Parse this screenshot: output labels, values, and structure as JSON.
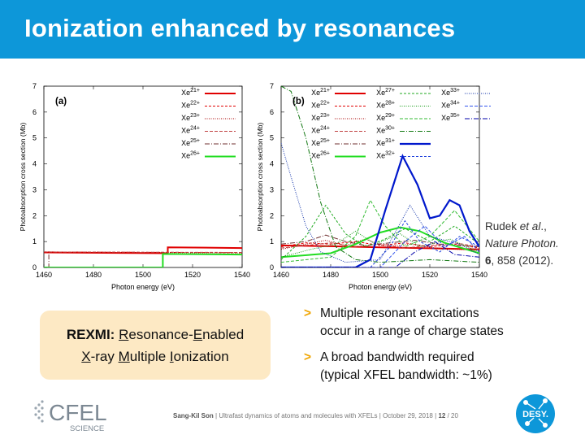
{
  "header": {
    "title": "Ionization enhanced by resonances"
  },
  "citation": {
    "authors": "Rudek",
    "etal": "et al",
    "rest": ".,",
    "journal": "Nature Photon.",
    "volume": "6",
    "pages": ", 858 (2012)."
  },
  "rexmi": {
    "acronym": "REXMI:",
    "w1_first": "R",
    "w1_rest": "esonance-",
    "w2_first": "E",
    "w2_rest": "nabled",
    "w3_first": "X",
    "w3_rest": "-ray ",
    "w4_first": "M",
    "w4_rest": "ultiple ",
    "w5_first": "I",
    "w5_rest": "onization"
  },
  "bullets": [
    {
      "marker": ">",
      "line1": "Multiple resonant excitations",
      "line2": "occur in a range of charge states"
    },
    {
      "marker": ">",
      "line1": "A broad bandwidth required",
      "line2": "(typical XFEL bandwidth: ~1%)"
    }
  ],
  "footer": {
    "author": "Sang-Kil Son",
    "talk": "Ultrafast dynamics of atoms and molecules with XFELs",
    "date": "October 29, 2018",
    "page": "12",
    "total": "/ 20",
    "logo_text": "CFEL",
    "logo_sub": "SCIENCE",
    "desy_text": "DESY."
  },
  "colors": {
    "header": "#0d97d9",
    "accent": "#f0a500",
    "box": "#fde9c4"
  },
  "chart_data": [
    {
      "type": "line",
      "panel_label": "(a)",
      "xlabel": "Photon energy (eV)",
      "ylabel": "Photoabsorption cross section (Mb)",
      "xlim": [
        1460,
        1540
      ],
      "ylim": [
        0,
        7
      ],
      "xticks": [
        1460,
        1480,
        1500,
        1520,
        1540
      ],
      "yticks": [
        0,
        1,
        2,
        3,
        4,
        5,
        6,
        7
      ],
      "legend": "top-right",
      "series": [
        {
          "name": "Xe21+",
          "color": "#e00000",
          "dash": "",
          "width": 2,
          "points": [
            [
              1460,
              0.58
            ],
            [
              1510,
              0.55
            ],
            [
              1510,
              0.78
            ],
            [
              1540,
              0.75
            ]
          ]
        },
        {
          "name": "Xe22+",
          "color": "#e00000",
          "dash": "3,2",
          "width": 1,
          "points": [
            [
              1460,
              0.6
            ],
            [
              1540,
              0.57
            ]
          ]
        },
        {
          "name": "Xe23+",
          "color": "#aa0000",
          "dash": "1,1.5",
          "width": 1,
          "points": [
            [
              1460,
              0.59
            ],
            [
              1540,
              0.56
            ]
          ]
        },
        {
          "name": "Xe24+",
          "color": "#c04040",
          "dash": "4,2",
          "width": 1,
          "points": [
            [
              1460,
              0.6
            ],
            [
              1540,
              0.58
            ]
          ]
        },
        {
          "name": "Xe25+",
          "color": "#703030",
          "dash": "6,2,1,2",
          "width": 1,
          "points": [
            [
              1462,
              0.5
            ],
            [
              1462,
              0.0
            ]
          ]
        },
        {
          "name": "Xe26+",
          "color": "#22dd22",
          "dash": "",
          "width": 2,
          "points": [
            [
              1460,
              0.0
            ],
            [
              1508,
              0.0
            ],
            [
              1508,
              0.52
            ],
            [
              1540,
              0.5
            ]
          ]
        }
      ]
    },
    {
      "type": "line",
      "panel_label": "(b)",
      "xlabel": "Photon energy (eV)",
      "ylabel": "Photoabsorption cross section (Mb)",
      "xlim": [
        1460,
        1540
      ],
      "ylim": [
        0,
        7
      ],
      "xticks": [
        1460,
        1480,
        1500,
        1520,
        1540
      ],
      "yticks": [
        0,
        1,
        2,
        3,
        4,
        5,
        6,
        7
      ],
      "legend": "top-right",
      "series": [
        {
          "name": "Xe21+",
          "color": "#e00000",
          "dash": "",
          "width": 2,
          "points": [
            [
              1460,
              0.85
            ],
            [
              1480,
              0.82
            ],
            [
              1500,
              0.78
            ],
            [
              1520,
              0.74
            ],
            [
              1540,
              0.7
            ]
          ]
        },
        {
          "name": "Xe22+",
          "color": "#e00000",
          "dash": "3,2",
          "width": 1,
          "points": [
            [
              1460,
              0.8
            ],
            [
              1470,
              0.95
            ],
            [
              1480,
              0.9
            ],
            [
              1490,
              1.0
            ],
            [
              1500,
              0.85
            ],
            [
              1510,
              0.95
            ],
            [
              1520,
              0.8
            ],
            [
              1530,
              0.9
            ],
            [
              1540,
              0.75
            ]
          ]
        },
        {
          "name": "Xe23+",
          "color": "#aa0000",
          "dash": "1,1.5",
          "width": 1,
          "points": [
            [
              1460,
              0.7
            ],
            [
              1470,
              0.9
            ],
            [
              1478,
              1.05
            ],
            [
              1486,
              0.85
            ],
            [
              1494,
              1.1
            ],
            [
              1502,
              0.8
            ],
            [
              1512,
              0.9
            ],
            [
              1522,
              0.75
            ],
            [
              1540,
              0.65
            ]
          ]
        },
        {
          "name": "Xe24+",
          "color": "#c04040",
          "dash": "4,2",
          "width": 1,
          "points": [
            [
              1460,
              0.75
            ],
            [
              1470,
              0.85
            ],
            [
              1480,
              0.95
            ],
            [
              1490,
              0.8
            ],
            [
              1500,
              0.9
            ],
            [
              1510,
              0.75
            ],
            [
              1520,
              0.85
            ],
            [
              1530,
              0.95
            ],
            [
              1540,
              0.8
            ]
          ]
        },
        {
          "name": "Xe25+",
          "color": "#703030",
          "dash": "6,2,1,2",
          "width": 1,
          "points": [
            [
              1460,
              0.9
            ],
            [
              1470,
              1.0
            ],
            [
              1478,
              1.25
            ],
            [
              1486,
              1.0
            ],
            [
              1494,
              0.85
            ],
            [
              1504,
              0.95
            ],
            [
              1514,
              1.05
            ],
            [
              1524,
              0.9
            ],
            [
              1540,
              0.8
            ]
          ]
        },
        {
          "name": "Xe26+",
          "color": "#22dd22",
          "dash": "",
          "width": 2,
          "points": [
            [
              1460,
              0.4
            ],
            [
              1480,
              0.55
            ],
            [
              1490,
              0.9
            ],
            [
              1500,
              1.35
            ],
            [
              1508,
              1.55
            ],
            [
              1516,
              1.4
            ],
            [
              1526,
              0.95
            ],
            [
              1540,
              0.55
            ]
          ]
        },
        {
          "name": "Xe27+",
          "color": "#22aa22",
          "dash": "3,2",
          "width": 1,
          "points": [
            [
              1460,
              0.3
            ],
            [
              1470,
              1.2
            ],
            [
              1478,
              2.4
            ],
            [
              1486,
              1.3
            ],
            [
              1494,
              0.8
            ],
            [
              1502,
              1.1
            ],
            [
              1510,
              1.5
            ],
            [
              1520,
              1.0
            ],
            [
              1530,
              1.6
            ],
            [
              1540,
              0.9
            ]
          ]
        },
        {
          "name": "Xe28+",
          "color": "#119911",
          "dash": "1,1.5",
          "width": 1,
          "points": [
            [
              1460,
              0.4
            ],
            [
              1472,
              0.7
            ],
            [
              1482,
              0.9
            ],
            [
              1490,
              1.4
            ],
            [
              1498,
              0.9
            ],
            [
              1508,
              1.3
            ],
            [
              1516,
              0.8
            ],
            [
              1528,
              1.1
            ],
            [
              1540,
              0.6
            ]
          ]
        },
        {
          "name": "Xe29+",
          "color": "#33bb33",
          "dash": "4,2",
          "width": 1,
          "points": [
            [
              1460,
              0.2
            ],
            [
              1480,
              0.4
            ],
            [
              1490,
              1.2
            ],
            [
              1496,
              2.6
            ],
            [
              1502,
              1.6
            ],
            [
              1510,
              0.8
            ],
            [
              1520,
              1.2
            ],
            [
              1530,
              2.2
            ],
            [
              1540,
              1.0
            ]
          ]
        },
        {
          "name": "Xe30+",
          "color": "#117711",
          "dash": "6,2,1,2",
          "width": 1,
          "points": [
            [
              1460,
              7.0
            ],
            [
              1464,
              6.8
            ],
            [
              1470,
              5.0
            ],
            [
              1476,
              2.5
            ],
            [
              1482,
              0.8
            ],
            [
              1490,
              0.3
            ],
            [
              1500,
              0.2
            ],
            [
              1520,
              0.3
            ],
            [
              1540,
              0.2
            ]
          ]
        },
        {
          "name": "Xe31+",
          "color": "#0018cc",
          "dash": "",
          "width": 2.2,
          "points": [
            [
              1460,
              0.0
            ],
            [
              1490,
              0.0
            ],
            [
              1496,
              0.3
            ],
            [
              1502,
              2.2
            ],
            [
              1509,
              4.3
            ],
            [
              1515,
              3.2
            ],
            [
              1520,
              1.9
            ],
            [
              1524,
              2.0
            ],
            [
              1528,
              2.6
            ],
            [
              1532,
              2.4
            ],
            [
              1536,
              1.4
            ],
            [
              1540,
              0.8
            ]
          ]
        },
        {
          "name": "Xe32+",
          "color": "#2244dd",
          "dash": "3,2",
          "width": 1,
          "points": [
            [
              1460,
              0.0
            ],
            [
              1496,
              0.0
            ],
            [
              1504,
              0.8
            ],
            [
              1510,
              1.8
            ],
            [
              1516,
              1.0
            ],
            [
              1524,
              0.6
            ],
            [
              1532,
              1.2
            ],
            [
              1540,
              0.8
            ]
          ]
        },
        {
          "name": "Xe33+",
          "color": "#1133aa",
          "dash": "1,1.5",
          "width": 1,
          "points": [
            [
              1460,
              4.8
            ],
            [
              1464,
              3.5
            ],
            [
              1470,
              1.6
            ],
            [
              1476,
              0.6
            ],
            [
              1486,
              0.2
            ],
            [
              1500,
              0.3
            ],
            [
              1512,
              2.4
            ],
            [
              1520,
              1.2
            ],
            [
              1532,
              0.9
            ],
            [
              1540,
              0.5
            ]
          ]
        },
        {
          "name": "Xe34+",
          "color": "#3355ee",
          "dash": "4,2",
          "width": 1,
          "points": [
            [
              1460,
              0.0
            ],
            [
              1500,
              0.0
            ],
            [
              1510,
              1.0
            ],
            [
              1518,
              1.6
            ],
            [
              1526,
              0.8
            ],
            [
              1534,
              1.2
            ],
            [
              1540,
              0.6
            ]
          ]
        },
        {
          "name": "Xe35+",
          "color": "#0000aa",
          "dash": "6,2,1,2",
          "width": 1,
          "points": [
            [
              1460,
              0.0
            ],
            [
              1506,
              0.0
            ],
            [
              1514,
              0.6
            ],
            [
              1522,
              1.0
            ],
            [
              1530,
              0.5
            ],
            [
              1540,
              0.4
            ]
          ]
        }
      ]
    }
  ]
}
